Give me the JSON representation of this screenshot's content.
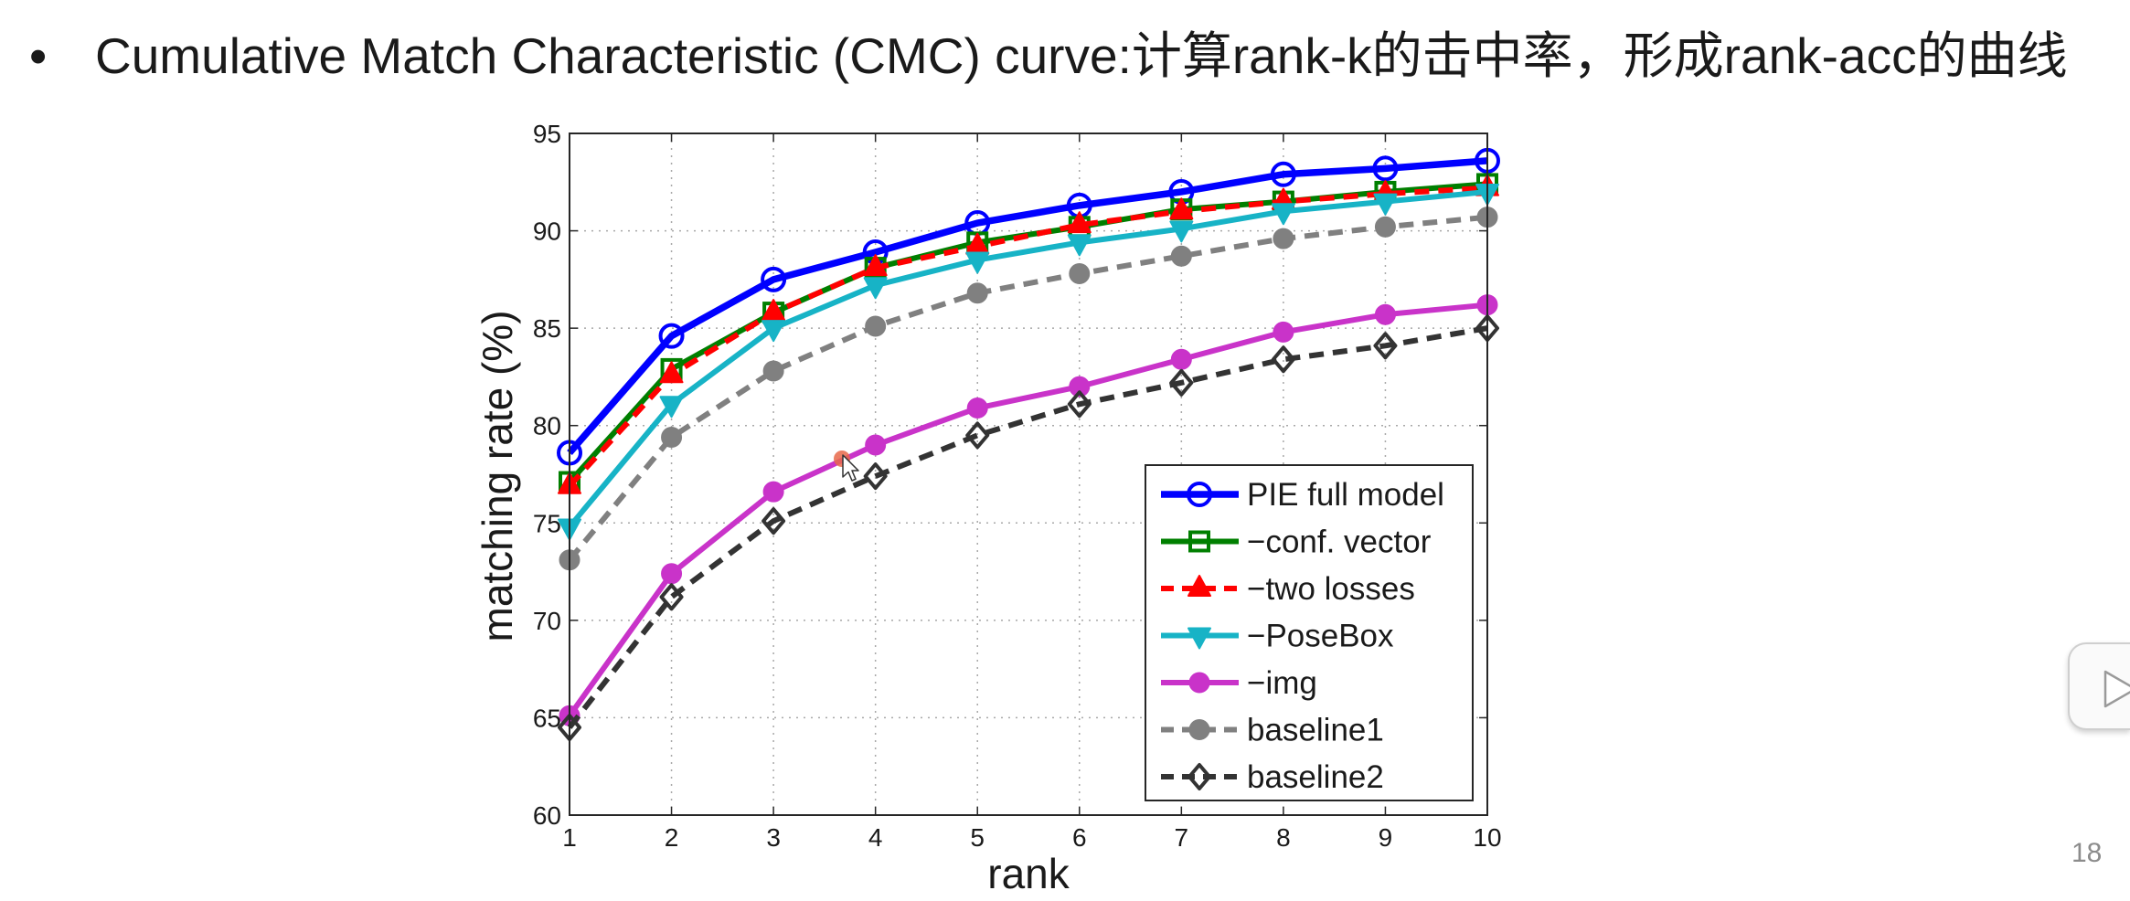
{
  "slide": {
    "bullet": "•",
    "title": "Cumulative Match Characteristic (CMC) curve:计算rank-k的击中率，形成rank-acc的曲线",
    "page_number": "18"
  },
  "chart_data": {
    "type": "line",
    "xlabel": "rank",
    "ylabel": "matching rate (%)",
    "x": [
      1,
      2,
      3,
      4,
      5,
      6,
      7,
      8,
      9,
      10
    ],
    "xticks": [
      1,
      2,
      3,
      4,
      5,
      6,
      7,
      8,
      9,
      10
    ],
    "yticks": [
      60,
      65,
      70,
      75,
      80,
      85,
      90,
      95
    ],
    "xlim": [
      1,
      10
    ],
    "ylim": [
      60,
      95
    ],
    "grid": true,
    "legend_position": "bottom-right",
    "series": [
      {
        "name": "PIE full model",
        "values": [
          78.6,
          84.6,
          87.5,
          88.9,
          90.4,
          91.3,
          92.0,
          92.9,
          93.2,
          93.6
        ],
        "color": "#0000FF",
        "dashed": false,
        "marker": "open-circle"
      },
      {
        "name": "−conf. vector",
        "values": [
          77.1,
          82.9,
          85.8,
          88.1,
          89.4,
          90.2,
          91.1,
          91.5,
          92.0,
          92.4
        ],
        "color": "#007F00",
        "dashed": false,
        "marker": "open-square"
      },
      {
        "name": "−two losses",
        "values": [
          76.9,
          82.6,
          85.8,
          88.1,
          89.2,
          90.3,
          91.0,
          91.5,
          91.9,
          92.2
        ],
        "color": "#FF0000",
        "dashed": true,
        "marker": "filled-triangle-up"
      },
      {
        "name": "−PoseBox",
        "values": [
          74.8,
          81.1,
          85.0,
          87.2,
          88.5,
          89.4,
          90.1,
          91.0,
          91.5,
          92.0
        ],
        "color": "#17B3C6",
        "dashed": false,
        "marker": "filled-triangle-down"
      },
      {
        "name": "−img",
        "values": [
          65.1,
          72.4,
          76.6,
          79.0,
          80.9,
          82.0,
          83.4,
          84.8,
          85.7,
          86.2
        ],
        "color": "#C933C9",
        "dashed": false,
        "marker": "filled-circle"
      },
      {
        "name": "baseline1",
        "values": [
          73.1,
          79.4,
          82.8,
          85.1,
          86.8,
          87.8,
          88.7,
          89.6,
          90.2,
          90.7
        ],
        "color": "#808080",
        "dashed": true,
        "marker": "filled-circle"
      },
      {
        "name": "baseline2",
        "values": [
          64.5,
          71.2,
          75.1,
          77.4,
          79.5,
          81.1,
          82.2,
          83.4,
          84.1,
          85.0
        ],
        "color": "#333333",
        "dashed": true,
        "marker": "open-diamond"
      }
    ]
  },
  "overlay": {
    "play_button_icon": "play-icon",
    "cursor_icon": "arrow-cursor-icon",
    "pointer_dot_color": "#E8694A"
  }
}
